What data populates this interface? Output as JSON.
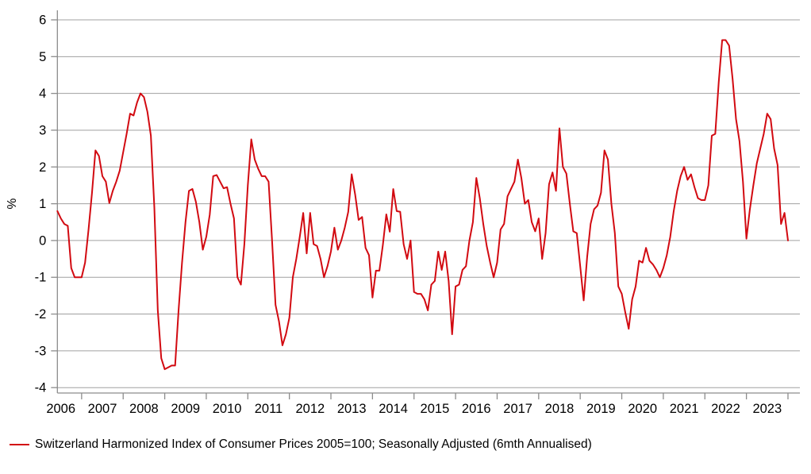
{
  "legend": {
    "label": "Switzerland Harmonized Index of Consumer Prices 2005=100; Seasonally Adjusted (6mth Annualised)"
  },
  "chart_data": {
    "type": "line",
    "title": "",
    "xlabel": "",
    "ylabel": "%",
    "ylim": [
      -4,
      6
    ],
    "yticks": [
      6,
      5,
      4,
      3,
      2,
      1,
      0,
      -1,
      -2,
      -3,
      -4
    ],
    "x_year_labels": [
      "2006",
      "2007",
      "2008",
      "2009",
      "2010",
      "2011",
      "2012",
      "2013",
      "2014",
      "2015",
      "2016",
      "2017",
      "2018",
      "2019",
      "2020",
      "2021",
      "2022",
      "2023"
    ],
    "grid": true,
    "legend_position": "bottom-left",
    "series": [
      {
        "name": "Switzerland Harmonized Index of Consumer Prices 2005=100; Seasonally Adjusted (6mth Annualised)",
        "start": "2006-06",
        "frequency": "monthly",
        "color": "#d20a11",
        "values": [
          0.8,
          0.6,
          0.45,
          0.4,
          -0.75,
          -1.0,
          -1.0,
          -1.0,
          -0.6,
          0.3,
          1.3,
          2.45,
          2.3,
          1.75,
          1.6,
          1.02,
          1.35,
          1.6,
          1.9,
          2.4,
          2.9,
          3.45,
          3.4,
          3.75,
          4.0,
          3.9,
          3.5,
          2.85,
          0.9,
          -1.9,
          -3.2,
          -3.5,
          -3.45,
          -3.4,
          -3.4,
          -1.9,
          -0.6,
          0.5,
          1.35,
          1.4,
          1.05,
          0.5,
          -0.25,
          0.1,
          0.7,
          1.75,
          1.78,
          1.6,
          1.42,
          1.45,
          1.0,
          0.6,
          -1.0,
          -1.2,
          -0.1,
          1.5,
          2.75,
          2.2,
          1.95,
          1.75,
          1.75,
          1.6,
          0.0,
          -1.75,
          -2.2,
          -2.85,
          -2.55,
          -2.1,
          -1.0,
          -0.5,
          0.1,
          0.75,
          -0.35,
          0.75,
          -0.1,
          -0.15,
          -0.5,
          -1.0,
          -0.7,
          -0.3,
          0.35,
          -0.25,
          0.0,
          0.35,
          0.78,
          1.8,
          1.25,
          0.56,
          0.64,
          -0.2,
          -0.4,
          -1.55,
          -0.82,
          -0.82,
          -0.12,
          0.71,
          0.24,
          1.4,
          0.8,
          0.78,
          -0.1,
          -0.5,
          0.0,
          -1.4,
          -1.45,
          -1.45,
          -1.6,
          -1.9,
          -1.2,
          -1.1,
          -0.3,
          -0.8,
          -0.3,
          -1.1,
          -2.55,
          -1.25,
          -1.2,
          -0.8,
          -0.7,
          0.0,
          0.5,
          1.7,
          1.15,
          0.45,
          -0.15,
          -0.6,
          -1.0,
          -0.6,
          0.3,
          0.45,
          1.2,
          1.4,
          1.6,
          2.2,
          1.7,
          1.0,
          1.1,
          0.5,
          0.25,
          0.6,
          -0.5,
          0.2,
          1.53,
          1.85,
          1.35,
          3.05,
          2.0,
          1.82,
          1.0,
          0.25,
          0.2,
          -0.7,
          -1.63,
          -0.45,
          0.45,
          0.85,
          0.95,
          1.3,
          2.45,
          2.2,
          1.0,
          0.2,
          -1.25,
          -1.45,
          -1.95,
          -2.4,
          -1.6,
          -1.25,
          -0.55,
          -0.6,
          -0.2,
          -0.55,
          -0.65,
          -0.8,
          -1.0,
          -0.75,
          -0.4,
          0.1,
          0.8,
          1.35,
          1.75,
          2.0,
          1.65,
          1.8,
          1.45,
          1.15,
          1.1,
          1.1,
          1.5,
          2.85,
          2.9,
          4.3,
          5.45,
          5.45,
          5.3,
          4.4,
          3.3,
          2.7,
          1.6,
          0.05,
          0.85,
          1.5,
          2.1,
          2.5,
          2.9,
          3.45,
          3.3,
          2.5,
          2.05,
          0.45,
          0.75,
          0.0
        ]
      }
    ],
    "colors": {
      "line": "#d20a11",
      "grid": "#a0a0a0",
      "axis": "#8c8c8c",
      "text": "#000000",
      "background": "#ffffff"
    }
  }
}
